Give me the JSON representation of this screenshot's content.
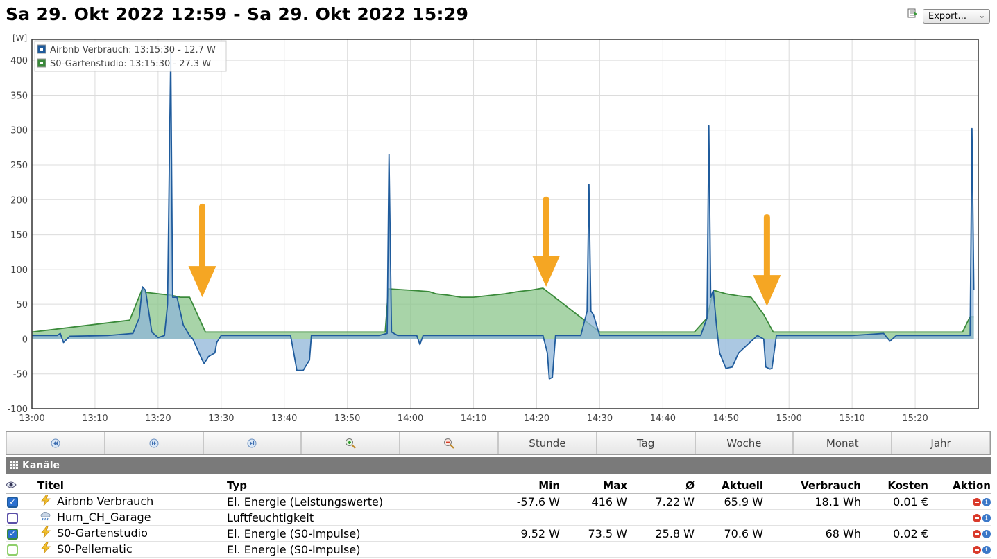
{
  "title": "Sa 29. Okt 2022 12:59 - Sa 29. Okt 2022 15:29",
  "export": {
    "label": "Export...",
    "icon": "export-icon"
  },
  "chart_data": {
    "type": "area",
    "ylabel": "[W]",
    "ylim": [
      -100,
      430
    ],
    "yticks": [
      -100,
      -50,
      0,
      50,
      100,
      150,
      200,
      250,
      300,
      350,
      400
    ],
    "xlim": [
      "13:00",
      "15:30"
    ],
    "xticks": [
      "13:00",
      "13:10",
      "13:20",
      "13:30",
      "13:40",
      "13:50",
      "14:00",
      "14:10",
      "14:20",
      "14:30",
      "14:40",
      "14:50",
      "15:00",
      "15:10",
      "15:20"
    ],
    "grid": true,
    "legend_position": "top-left",
    "legend": [
      "Airbnb Verbrauch: 13:15:30 - 12.7 W",
      "S0-Gartenstudio: 13:15:30 - 27.3 W"
    ],
    "series": [
      {
        "name": "Airbnb Verbrauch",
        "color": "#1f5b9c",
        "fill": "#8fb5d8",
        "x": [
          "13:00",
          "13:04",
          "13:04.5",
          "13:05",
          "13:06",
          "13:12",
          "13:16",
          "13:17",
          "13:17.5",
          "13:18",
          "13:19",
          "13:20",
          "13:21",
          "13:21.5",
          "13:22",
          "13:22.3",
          "13:23",
          "13:24",
          "13:25",
          "13:25.5",
          "13:26",
          "13:27",
          "13:27.3",
          "13:28",
          "13:29",
          "13:29.3",
          "13:30",
          "13:35",
          "13:41",
          "13:41.5",
          "13:42",
          "13:42.5",
          "13:43",
          "13:44",
          "13:44.3",
          "13:45",
          "13:50",
          "13:55",
          "13:56.3",
          "13:56.6",
          "13:57",
          "13:58",
          "14:01",
          "14:01.5",
          "14:02",
          "14:05",
          "14:10",
          "14:15",
          "14:20",
          "14:21",
          "14:21.7",
          "14:22",
          "14:22.5",
          "14:23",
          "14:24",
          "14:27",
          "14:28",
          "14:28.3",
          "14:28.6",
          "14:29",
          "14:30",
          "14:35",
          "14:40",
          "14:45",
          "14:46",
          "14:47",
          "14:47.3",
          "14:47.6",
          "14:48",
          "14:48.5",
          "14:49",
          "14:50",
          "14:51",
          "14:52",
          "14:55",
          "14:56",
          "14:56.3",
          "14:57",
          "14:57.3",
          "14:58",
          "15:00",
          "15:10",
          "15:15",
          "15:16",
          "15:17",
          "15:20",
          "15:28",
          "15:28.7",
          "15:29",
          "15:29.3"
        ],
        "y": [
          5,
          5,
          8,
          -5,
          4,
          5,
          8,
          30,
          75,
          70,
          10,
          2,
          5,
          50,
          412,
          60,
          60,
          20,
          5,
          0,
          -10,
          -30,
          -35,
          -25,
          -20,
          -5,
          5,
          5,
          5,
          -20,
          -45,
          -45,
          -45,
          -30,
          5,
          5,
          5,
          5,
          8,
          265,
          10,
          5,
          5,
          -8,
          5,
          5,
          5,
          5,
          5,
          5,
          -20,
          -57,
          -55,
          5,
          5,
          5,
          40,
          222,
          40,
          35,
          5,
          5,
          5,
          5,
          5,
          30,
          306,
          60,
          70,
          20,
          -20,
          -42,
          -40,
          -20,
          5,
          0,
          -40,
          -43,
          -42,
          5,
          5,
          5,
          8,
          -3,
          5,
          5,
          5,
          5,
          302,
          70
        ]
      },
      {
        "name": "S0-Gartenstudio",
        "color": "#3a8a3a",
        "fill": "#8bc58b",
        "x": [
          "13:00",
          "13:15.5",
          "13:17.5",
          "13:18",
          "13:20",
          "13:22",
          "13:23.5",
          "13:25",
          "13:26",
          "13:27.5",
          "13:50",
          "13:56",
          "13:56.5",
          "14:00",
          "14:03",
          "14:04",
          "14:06",
          "14:08",
          "14:10",
          "14:12",
          "14:15",
          "14:17",
          "14:19",
          "14:21",
          "14:30",
          "14:45",
          "14:47",
          "14:48",
          "14:50",
          "14:52",
          "14:54",
          "14:56",
          "14:57.5",
          "15:27.5",
          "15:28.7",
          "15:29.3"
        ],
        "y": [
          10,
          27,
          72,
          67,
          65,
          63,
          60,
          60,
          40,
          10,
          10,
          10,
          72,
          70,
          68,
          65,
          63,
          60,
          60,
          62,
          65,
          68,
          70,
          73,
          10,
          10,
          30,
          70,
          65,
          62,
          60,
          35,
          10,
          10,
          32,
          32
        ]
      }
    ],
    "annotations": [
      {
        "type": "arrow-down",
        "color": "#f5a623",
        "x": "13:27",
        "y_from": 190,
        "y_to": 60
      },
      {
        "type": "arrow-down",
        "color": "#f5a623",
        "x": "14:21.5",
        "y_from": 200,
        "y_to": 75
      },
      {
        "type": "arrow-down",
        "color": "#f5a623",
        "x": "14:56.5",
        "y_from": 175,
        "y_to": 47
      }
    ]
  },
  "buttons": [
    {
      "name": "back-button",
      "label": "",
      "icon": "rewind-icon"
    },
    {
      "name": "forward-button",
      "label": "",
      "icon": "fast-forward-icon"
    },
    {
      "name": "end-button",
      "label": "",
      "icon": "skip-end-icon"
    },
    {
      "name": "zoom-in-button",
      "label": "",
      "icon": "zoom-in-icon"
    },
    {
      "name": "zoom-out-button",
      "label": "",
      "icon": "zoom-out-icon"
    },
    {
      "name": "hour-button",
      "label": "Stunde"
    },
    {
      "name": "day-button",
      "label": "Tag"
    },
    {
      "name": "week-button",
      "label": "Woche"
    },
    {
      "name": "month-button",
      "label": "Monat"
    },
    {
      "name": "year-button",
      "label": "Jahr"
    }
  ],
  "channels": {
    "section_title": "Kanäle",
    "headers": {
      "title": "Titel",
      "type": "Typ",
      "min": "Min",
      "max": "Max",
      "avg": "Ø",
      "current": "Aktuell",
      "consumption": "Verbrauch",
      "cost": "Kosten",
      "action": "Aktion"
    },
    "rows": [
      {
        "checked": true,
        "color": "#1f5b9c",
        "icon": "lightning-icon",
        "title": "Airbnb Verbrauch",
        "type": "El. Energie (Leistungswerte)",
        "min": "-57.6 W",
        "max": "416 W",
        "avg": "7.22 W",
        "current": "65.9 W",
        "consumption": "18.1 Wh",
        "cost": "0.01 €"
      },
      {
        "checked": false,
        "color": "#5a4ea8",
        "icon": "cloud-rain-icon",
        "title": "Hum_CH_Garage",
        "type": "Luftfeuchtigkeit",
        "min": "",
        "max": "",
        "avg": "",
        "current": "",
        "consumption": "",
        "cost": ""
      },
      {
        "checked": true,
        "color": "#3a8a3a",
        "icon": "lightning-icon",
        "title": "S0-Gartenstudio",
        "type": "El. Energie (S0-Impulse)",
        "min": "9.52 W",
        "max": "73.5 W",
        "avg": "25.8 W",
        "current": "70.6 W",
        "consumption": "68 Wh",
        "cost": "0.02 €"
      },
      {
        "checked": false,
        "color": "#8ecf6a",
        "icon": "lightning-icon",
        "title": "S0-Pellematic",
        "type": "El. Energie (S0-Impulse)",
        "min": "",
        "max": "",
        "avg": "",
        "current": "",
        "consumption": "",
        "cost": ""
      }
    ]
  }
}
